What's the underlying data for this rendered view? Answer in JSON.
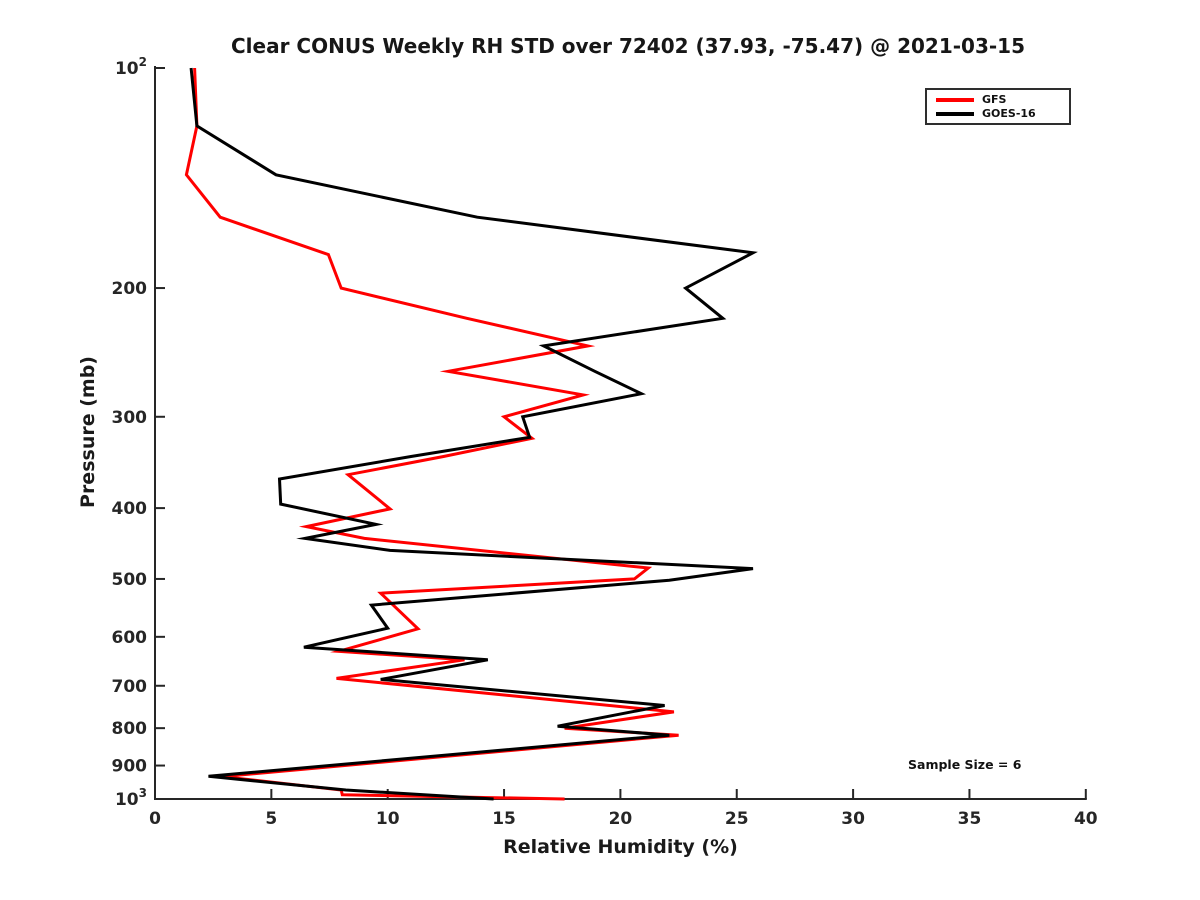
{
  "title": "Clear CONUS Weekly RH STD over 72402 (37.93, -75.47) @ 2021-03-15",
  "annotation": "Sample Size = 6",
  "legend": [
    {
      "label": "GFS",
      "color": "#ff0000"
    },
    {
      "label": "GOES-16",
      "color": "#000000"
    }
  ],
  "colors": {
    "axis": "#262626",
    "background": "#ffffff"
  },
  "chart_data": {
    "type": "line",
    "title": "Clear CONUS Weekly RH STD over 72402 (37.93, -75.47) @ 2021-03-15",
    "xlabel": "Relative Humidity (%)",
    "ylabel": "Pressure (mb)",
    "xlim": [
      0,
      40
    ],
    "ylim": [
      100,
      1000
    ],
    "y_scale": "log",
    "y_axis_inverted_display": "100 at top, 1000 at bottom",
    "grid": false,
    "legend_position": "upper right",
    "x_ticks": [
      0,
      5,
      10,
      15,
      20,
      25,
      30,
      35,
      40
    ],
    "y_ticks": [
      {
        "value": 100,
        "label": "10^2"
      },
      {
        "value": 200,
        "label": "200"
      },
      {
        "value": 300,
        "label": "300"
      },
      {
        "value": 400,
        "label": "400"
      },
      {
        "value": 500,
        "label": "500"
      },
      {
        "value": 600,
        "label": "600"
      },
      {
        "value": 700,
        "label": "700"
      },
      {
        "value": 800,
        "label": "800"
      },
      {
        "value": 900,
        "label": "900"
      },
      {
        "value": 1000,
        "label": "10^3"
      }
    ],
    "series": [
      {
        "name": "GFS",
        "color": "#ff0000",
        "points_format": "[relative_humidity_pct, pressure_mb]",
        "points": [
          [
            1.7,
            100
          ],
          [
            1.8,
            120
          ],
          [
            1.35,
            140
          ],
          [
            2.8,
            160
          ],
          [
            7.45,
            180
          ],
          [
            8.0,
            200
          ],
          [
            13.4,
            220
          ],
          [
            18.6,
            240
          ],
          [
            12.6,
            260
          ],
          [
            18.4,
            280
          ],
          [
            15.0,
            300
          ],
          [
            16.2,
            321
          ],
          [
            12.4,
            340
          ],
          [
            8.3,
            360
          ],
          [
            10.1,
            401
          ],
          [
            6.5,
            424
          ],
          [
            9.0,
            440
          ],
          [
            21.2,
            483
          ],
          [
            20.6,
            500
          ],
          [
            9.7,
            523
          ],
          [
            11.3,
            585
          ],
          [
            7.9,
            628
          ],
          [
            13.3,
            645
          ],
          [
            7.8,
            684
          ],
          [
            22.3,
            760
          ],
          [
            17.6,
            800
          ],
          [
            22.5,
            818
          ],
          [
            2.9,
            932
          ],
          [
            8.0,
            972
          ],
          [
            8.05,
            987
          ],
          [
            17.6,
            1000
          ]
        ]
      },
      {
        "name": "GOES-16",
        "color": "#000000",
        "points_format": "[relative_humidity_pct, pressure_mb]",
        "points": [
          [
            1.55,
            100
          ],
          [
            1.8,
            120
          ],
          [
            5.2,
            140
          ],
          [
            13.85,
            160
          ],
          [
            25.7,
            179
          ],
          [
            22.8,
            200
          ],
          [
            24.4,
            220
          ],
          [
            16.7,
            240
          ],
          [
            18.9,
            260
          ],
          [
            20.9,
            279
          ],
          [
            15.8,
            300
          ],
          [
            16.1,
            320
          ],
          [
            11.0,
            340
          ],
          [
            5.35,
            365
          ],
          [
            5.4,
            395
          ],
          [
            9.5,
            421
          ],
          [
            6.45,
            440
          ],
          [
            10.1,
            457
          ],
          [
            25.7,
            484
          ],
          [
            22.1,
            502
          ],
          [
            9.3,
            543
          ],
          [
            10.0,
            584
          ],
          [
            6.4,
            620
          ],
          [
            14.3,
            645
          ],
          [
            9.7,
            686
          ],
          [
            21.9,
            745
          ],
          [
            17.3,
            795
          ],
          [
            22.1,
            818
          ],
          [
            2.3,
            931
          ],
          [
            8.2,
            972
          ],
          [
            14.55,
            1000
          ]
        ]
      }
    ]
  }
}
